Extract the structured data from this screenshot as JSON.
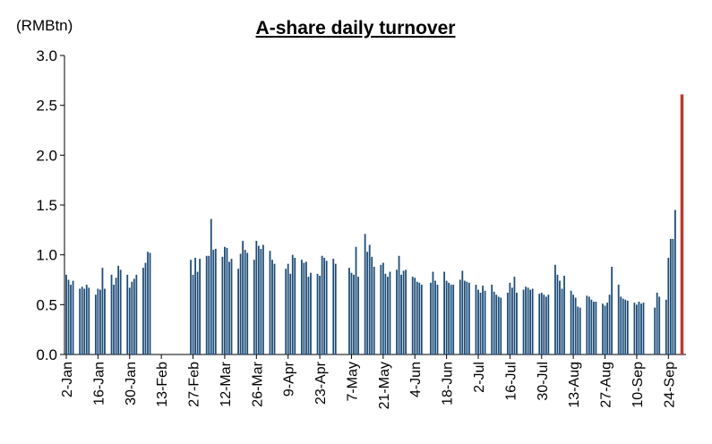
{
  "chart_data": {
    "type": "bar",
    "title": "A-share daily turnover",
    "unit_label": "(RMBtn)",
    "ylim": [
      0,
      3.0
    ],
    "yticks": [
      "0.0",
      "0.5",
      "1.0",
      "1.5",
      "2.0",
      "2.5",
      "3.0"
    ],
    "x_tick_labels": [
      "2-Jan",
      "16-Jan",
      "30-Jan",
      "13-Feb",
      "27-Feb",
      "12-Mar",
      "26-Mar",
      "9-Apr",
      "23-Apr",
      "7-May",
      "21-May",
      "4-Jun",
      "18-Jun",
      "2-Jul",
      "16-Jul",
      "30-Jul",
      "13-Aug",
      "27-Aug",
      "10-Sep",
      "24-Sep"
    ],
    "x_range": [
      "2-Jan",
      "30-Sep"
    ],
    "grid": false,
    "legend": "none",
    "colors": {
      "bar": "#1f4e79",
      "highlight": "#c0392b"
    },
    "series": [
      {
        "values": [
          [
            "2-Jan",
            0.8
          ],
          [
            "3-Jan",
            0.75
          ],
          [
            "4-Jan",
            0.7
          ],
          [
            "5-Jan",
            0.74
          ],
          [
            "8-Jan",
            0.66
          ],
          [
            "9-Jan",
            0.68
          ],
          [
            "10-Jan",
            0.66
          ],
          [
            "11-Jan",
            0.7
          ],
          [
            "12-Jan",
            0.67
          ],
          [
            "15-Jan",
            0.6
          ],
          [
            "16-Jan",
            0.66
          ],
          [
            "17-Jan",
            0.65
          ],
          [
            "18-Jan",
            0.87
          ],
          [
            "19-Jan",
            0.66
          ],
          [
            "22-Jan",
            0.8
          ],
          [
            "23-Jan",
            0.7
          ],
          [
            "24-Jan",
            0.77
          ],
          [
            "25-Jan",
            0.89
          ],
          [
            "26-Jan",
            0.85
          ],
          [
            "29-Jan",
            0.8
          ],
          [
            "30-Jan",
            0.67
          ],
          [
            "31-Jan",
            0.73
          ],
          [
            "1-Feb",
            0.76
          ],
          [
            "2-Feb",
            0.8
          ],
          [
            "5-Feb",
            0.87
          ],
          [
            "6-Feb",
            0.92
          ],
          [
            "7-Feb",
            1.03
          ],
          [
            "8-Feb",
            1.02
          ],
          [
            "26-Feb",
            0.95
          ],
          [
            "27-Feb",
            0.8
          ],
          [
            "28-Feb",
            0.97
          ],
          [
            "29-Feb",
            0.83
          ],
          [
            "1-Mar",
            0.96
          ],
          [
            "4-Mar",
            0.99
          ],
          [
            "5-Mar",
            0.99
          ],
          [
            "6-Mar",
            1.36
          ],
          [
            "7-Mar",
            1.05
          ],
          [
            "8-Mar",
            1.06
          ],
          [
            "11-Mar",
            0.98
          ],
          [
            "12-Mar",
            1.08
          ],
          [
            "13-Mar",
            1.07
          ],
          [
            "14-Mar",
            0.93
          ],
          [
            "15-Mar",
            0.96
          ],
          [
            "18-Mar",
            0.86
          ],
          [
            "19-Mar",
            1.01
          ],
          [
            "20-Mar",
            1.14
          ],
          [
            "21-Mar",
            1.05
          ],
          [
            "22-Mar",
            1.02
          ],
          [
            "25-Mar",
            0.95
          ],
          [
            "26-Mar",
            1.14
          ],
          [
            "27-Mar",
            1.09
          ],
          [
            "28-Mar",
            1.06
          ],
          [
            "29-Mar",
            1.1
          ],
          [
            "1-Apr",
            1.04
          ],
          [
            "2-Apr",
            0.95
          ],
          [
            "3-Apr",
            0.91
          ],
          [
            "8-Apr",
            0.86
          ],
          [
            "9-Apr",
            0.91
          ],
          [
            "10-Apr",
            0.81
          ],
          [
            "11-Apr",
            1.0
          ],
          [
            "12-Apr",
            0.97
          ],
          [
            "15-Apr",
            0.95
          ],
          [
            "16-Apr",
            0.92
          ],
          [
            "17-Apr",
            0.93
          ],
          [
            "18-Apr",
            0.78
          ],
          [
            "19-Apr",
            0.82
          ],
          [
            "22-Apr",
            0.81
          ],
          [
            "23-Apr",
            0.79
          ],
          [
            "24-Apr",
            0.99
          ],
          [
            "25-Apr",
            0.97
          ],
          [
            "26-Apr",
            0.94
          ],
          [
            "29-Apr",
            0.96
          ],
          [
            "30-Apr",
            0.91
          ],
          [
            "6-May",
            0.87
          ],
          [
            "7-May",
            0.82
          ],
          [
            "8-May",
            0.8
          ],
          [
            "9-May",
            1.08
          ],
          [
            "10-May",
            0.78
          ],
          [
            "13-May",
            1.21
          ],
          [
            "14-May",
            1.03
          ],
          [
            "15-May",
            1.1
          ],
          [
            "16-May",
            0.98
          ],
          [
            "17-May",
            0.88
          ],
          [
            "20-May",
            0.9
          ],
          [
            "21-May",
            0.92
          ],
          [
            "22-May",
            0.81
          ],
          [
            "23-May",
            0.78
          ],
          [
            "24-May",
            0.83
          ],
          [
            "27-May",
            0.85
          ],
          [
            "28-May",
            0.99
          ],
          [
            "29-May",
            0.8
          ],
          [
            "30-May",
            0.84
          ],
          [
            "31-May",
            0.85
          ],
          [
            "3-Jun",
            0.78
          ],
          [
            "4-Jun",
            0.77
          ],
          [
            "5-Jun",
            0.73
          ],
          [
            "6-Jun",
            0.72
          ],
          [
            "7-Jun",
            0.7
          ],
          [
            "11-Jun",
            0.72
          ],
          [
            "12-Jun",
            0.83
          ],
          [
            "13-Jun",
            0.74
          ],
          [
            "14-Jun",
            0.7
          ],
          [
            "17-Jun",
            0.83
          ],
          [
            "18-Jun",
            0.74
          ],
          [
            "19-Jun",
            0.72
          ],
          [
            "20-Jun",
            0.7
          ],
          [
            "21-Jun",
            0.7
          ],
          [
            "24-Jun",
            0.75
          ],
          [
            "25-Jun",
            0.84
          ],
          [
            "26-Jun",
            0.74
          ],
          [
            "27-Jun",
            0.73
          ],
          [
            "28-Jun",
            0.72
          ],
          [
            "1-Jul",
            0.7
          ],
          [
            "2-Jul",
            0.65
          ],
          [
            "3-Jul",
            0.62
          ],
          [
            "4-Jul",
            0.69
          ],
          [
            "5-Jul",
            0.64
          ],
          [
            "8-Jul",
            0.7
          ],
          [
            "9-Jul",
            0.63
          ],
          [
            "10-Jul",
            0.6
          ],
          [
            "11-Jul",
            0.58
          ],
          [
            "12-Jul",
            0.57
          ],
          [
            "15-Jul",
            0.62
          ],
          [
            "16-Jul",
            0.72
          ],
          [
            "17-Jul",
            0.67
          ],
          [
            "18-Jul",
            0.78
          ],
          [
            "19-Jul",
            0.62
          ],
          [
            "22-Jul",
            0.65
          ],
          [
            "23-Jul",
            0.68
          ],
          [
            "24-Jul",
            0.67
          ],
          [
            "25-Jul",
            0.65
          ],
          [
            "26-Jul",
            0.66
          ],
          [
            "29-Jul",
            0.61
          ],
          [
            "30-Jul",
            0.62
          ],
          [
            "31-Jul",
            0.6
          ],
          [
            "1-Aug",
            0.58
          ],
          [
            "2-Aug",
            0.6
          ],
          [
            "5-Aug",
            0.9
          ],
          [
            "6-Aug",
            0.8
          ],
          [
            "7-Aug",
            0.74
          ],
          [
            "8-Aug",
            0.66
          ],
          [
            "9-Aug",
            0.79
          ],
          [
            "12-Aug",
            0.64
          ],
          [
            "13-Aug",
            0.6
          ],
          [
            "14-Aug",
            0.57
          ],
          [
            "15-Aug",
            0.48
          ],
          [
            "16-Aug",
            0.47
          ],
          [
            "19-Aug",
            0.59
          ],
          [
            "20-Aug",
            0.58
          ],
          [
            "21-Aug",
            0.55
          ],
          [
            "22-Aug",
            0.53
          ],
          [
            "23-Aug",
            0.53
          ],
          [
            "26-Aug",
            0.51
          ],
          [
            "27-Aug",
            0.49
          ],
          [
            "28-Aug",
            0.52
          ],
          [
            "29-Aug",
            0.6
          ],
          [
            "30-Aug",
            0.88
          ],
          [
            "2-Sep",
            0.7
          ],
          [
            "3-Sep",
            0.58
          ],
          [
            "4-Sep",
            0.56
          ],
          [
            "5-Sep",
            0.55
          ],
          [
            "6-Sep",
            0.54
          ],
          [
            "9-Sep",
            0.52
          ],
          [
            "10-Sep",
            0.5
          ],
          [
            "11-Sep",
            0.53
          ],
          [
            "12-Sep",
            0.51
          ],
          [
            "13-Sep",
            0.52
          ],
          [
            "18-Sep",
            0.47
          ],
          [
            "19-Sep",
            0.62
          ],
          [
            "20-Sep",
            0.58
          ],
          [
            "23-Sep",
            0.55
          ],
          [
            "24-Sep",
            0.97
          ],
          [
            "25-Sep",
            1.16
          ],
          [
            "26-Sep",
            1.16
          ],
          [
            "27-Sep",
            1.45
          ],
          [
            "30-Sep",
            2.61
          ]
        ]
      }
    ]
  }
}
